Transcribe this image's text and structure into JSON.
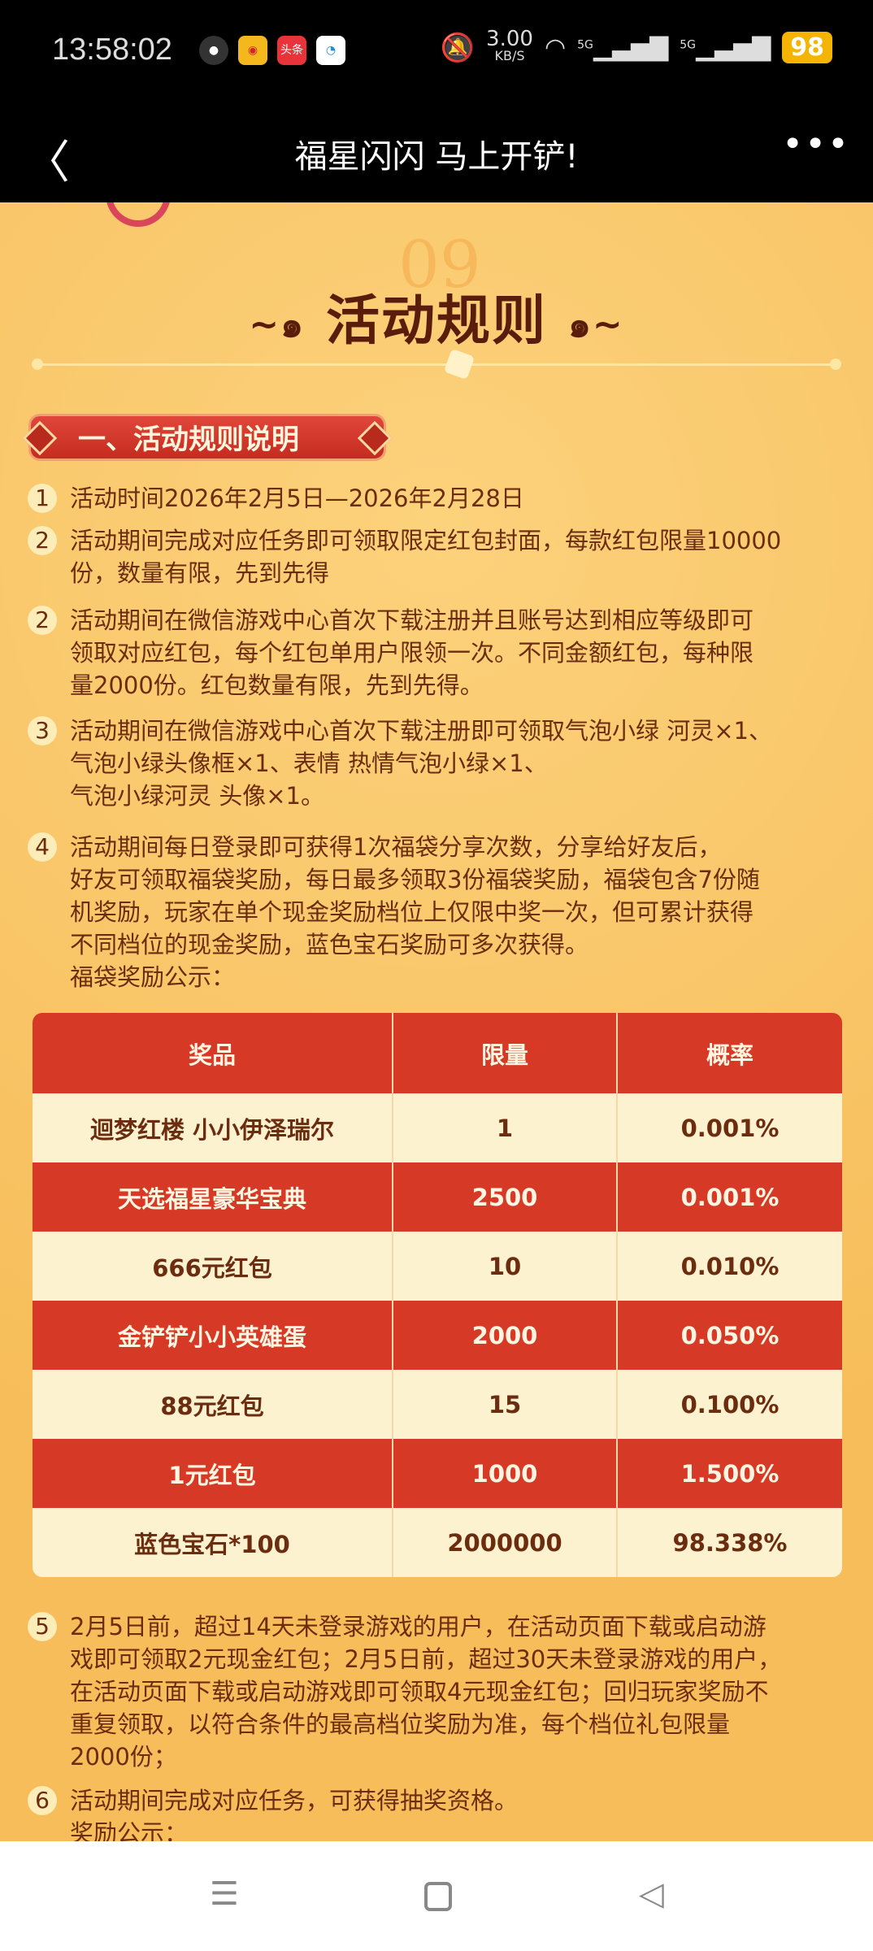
{
  "status_bar": {
    "time": "13:58:02",
    "app_icons": [
      "wechat-icon",
      "weibo-icon",
      "toutiao-icon",
      "tencent-video-icon"
    ],
    "toutiao_label": "头条",
    "net_speed": "3.00",
    "net_unit": "KB/S",
    "signal1": "5G",
    "signal2": "5G",
    "battery": "98"
  },
  "header": {
    "title": "福星闪闪 马上开铲!",
    "back_icon": "chevron-left-icon",
    "more_icon": "more-icon"
  },
  "page": {
    "deco_number": "09",
    "heading": "活动规则",
    "section_title": "一、活动规则说明",
    "items": [
      {
        "num": "1",
        "lines": [
          "活动时间2026年2月5日—2026年2月28日"
        ]
      },
      {
        "num": "2",
        "lines": [
          "活动期间完成对应任务即可领取限定红包封面，每款红包限量10000",
          "份，数量有限，先到先得"
        ]
      },
      {
        "num": "2",
        "lines": [
          "活动期间在微信游戏中心首次下载注册并且账号达到相应等级即可",
          "领取对应红包，每个红包单用户限领一次。不同金额红包，每种限",
          "量2000份。红包数量有限，先到先得。"
        ]
      },
      {
        "num": "3",
        "lines": [
          "活动期间在微信游戏中心首次下载注册即可领取气泡小绿 河灵×1、",
          "气泡小绿头像框×1、表情 热情气泡小绿×1、",
          "气泡小绿河灵 头像×1。"
        ]
      },
      {
        "num": "4",
        "lines": [
          "活动期间每日登录即可获得1次福袋分享次数，分享给好友后，",
          "好友可领取福袋奖励，每日最多领取3份福袋奖励，福袋包含7份随",
          "机奖励，玩家在单个现金奖励档位上仅限中奖一次，但可累计获得",
          "不同档位的现金奖励，蓝色宝石奖励可多次获得。",
          "福袋奖励公示："
        ]
      },
      {
        "num": "5",
        "lines": [
          "2月5日前，超过14天未登录游戏的用户，在活动页面下载或启动游",
          "戏即可领取2元现金红包；2月5日前，超过30天未登录游戏的用户，",
          "在活动页面下载或启动游戏即可领取4元现金红包；回归玩家奖励不",
          "重复领取，以符合条件的最高档位奖励为准，每个档位礼包限量",
          "2000份；"
        ]
      },
      {
        "num": "6",
        "lines": [
          "活动期间完成对应任务，可获得抽奖资格。",
          "奖励公示："
        ]
      }
    ],
    "table": {
      "headers": [
        "奖品",
        "限量",
        "概率"
      ],
      "rows": [
        [
          "迴梦红楼 小小伊泽瑞尔",
          "1",
          "0.001%"
        ],
        [
          "天选福星豪华宝典",
          "2500",
          "0.001%"
        ],
        [
          "666元红包",
          "10",
          "0.010%"
        ],
        [
          "金铲铲小小英雄蛋",
          "2000",
          "0.050%"
        ],
        [
          "88元红包",
          "15",
          "0.100%"
        ],
        [
          "1元红包",
          "1000",
          "1.500%"
        ],
        [
          "蓝色宝石*100",
          "2000000",
          "98.338%"
        ]
      ]
    }
  },
  "colors": {
    "background": "#f8c462",
    "table_red": "#d63a27",
    "table_cream": "#fdf2cf",
    "text": "#6b2c10"
  },
  "nav_bar": {
    "icons": [
      "menu-icon",
      "home-icon",
      "back-triangle-icon"
    ]
  }
}
